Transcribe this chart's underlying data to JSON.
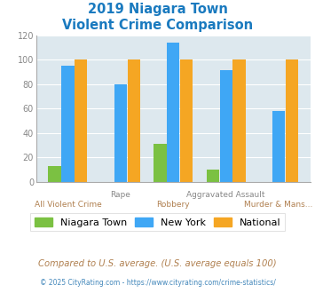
{
  "title_line1": "2019 Niagara Town",
  "title_line2": "Violent Crime Comparison",
  "categories": [
    "All Violent Crime",
    "Rape",
    "Robbery",
    "Aggravated Assault",
    "Murder & Mans..."
  ],
  "niagara_town": [
    13,
    0,
    31,
    10,
    0
  ],
  "new_york": [
    95,
    80,
    114,
    91,
    58
  ],
  "national": [
    100,
    100,
    100,
    100,
    100
  ],
  "color_niagara": "#7bc142",
  "color_newyork": "#3fa7f5",
  "color_national": "#f5a623",
  "ylim": [
    0,
    120
  ],
  "yticks": [
    0,
    20,
    40,
    60,
    80,
    100,
    120
  ],
  "background_color": "#dde8ee",
  "title_color": "#1a7abf",
  "xlabel_color_top": "#888888",
  "xlabel_color_bot": "#b08050",
  "legend_label1": "Niagara Town",
  "legend_label2": "New York",
  "legend_label3": "National",
  "footnote1": "Compared to U.S. average. (U.S. average equals 100)",
  "footnote2": "© 2025 CityRating.com - https://www.cityrating.com/crime-statistics/",
  "cat_labels_top": [
    "",
    "Rape",
    "",
    "Aggravated Assault",
    ""
  ],
  "cat_labels_bot": [
    "All Violent Crime",
    "",
    "Robbery",
    "",
    "Murder & Mans..."
  ]
}
